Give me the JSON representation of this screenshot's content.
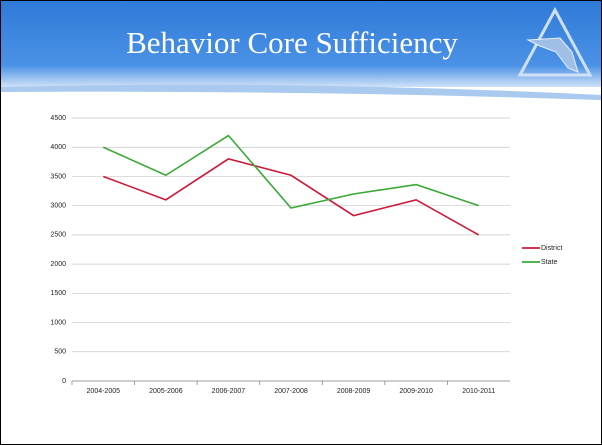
{
  "chart_data": {
    "type": "line",
    "title": "Behavior Core Sufficiency",
    "categories": [
      "2004-2005",
      "2005-2006",
      "2006-2007",
      "2007-2008",
      "2008-2009",
      "2009-2010",
      "2010-2011"
    ],
    "series": [
      {
        "name": "District",
        "color": "#cc1a3a",
        "values": [
          3500,
          3100,
          3800,
          3520,
          2830,
          3100,
          2500
        ]
      },
      {
        "name": "State",
        "color": "#3aa935",
        "values": [
          4000,
          3520,
          4200,
          2960,
          3200,
          3360,
          3000
        ]
      }
    ],
    "ylim": [
      0,
      4500
    ],
    "yticks": [
      0,
      500,
      1000,
      1500,
      2000,
      2500,
      3000,
      3500,
      4000,
      4500
    ],
    "grid": true,
    "legend": "right"
  }
}
